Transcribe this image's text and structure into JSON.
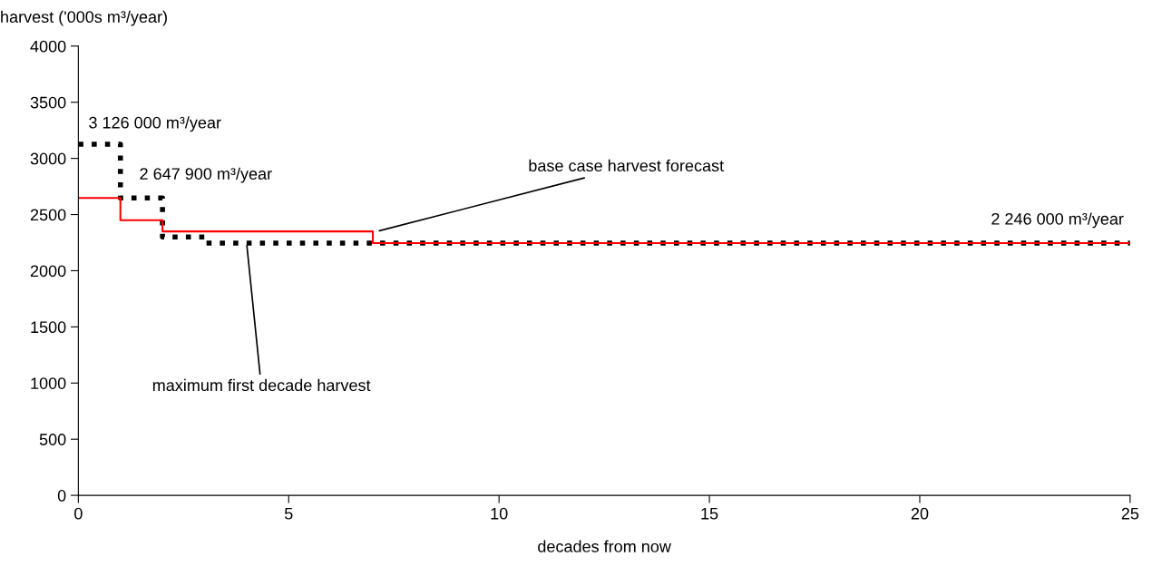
{
  "chart_data": {
    "type": "step",
    "xlabel": "decades from now",
    "ylabel": "harvest ('000s m³/year)",
    "xlim": [
      0,
      25
    ],
    "xticks": [
      0,
      5,
      10,
      15,
      20,
      25
    ],
    "ylim": [
      0,
      4000
    ],
    "yticks": [
      0,
      500,
      1000,
      1500,
      2000,
      2500,
      3000,
      3500,
      4000
    ],
    "grid": false,
    "legend": false,
    "series": [
      {
        "color": "#000000",
        "line_style": "dotted",
        "x": [
          0,
          1,
          2,
          3,
          25
        ],
        "values": [
          3126,
          2647.9,
          2300,
          2246,
          2246
        ]
      },
      {
        "color": "#ff0000",
        "line_style": "solid",
        "x": [
          0,
          1,
          2,
          7,
          25
        ],
        "values": [
          2647.9,
          2450,
          2350,
          2246,
          2246
        ]
      }
    ],
    "annotations": [
      {
        "text": "3 126 000 m³/year",
        "x": 0,
        "y": 3126
      },
      {
        "text": "2 647 900 m³/year",
        "x": 1,
        "y": 2647.9
      },
      {
        "text": "base case harvest forecast",
        "x": 7.1,
        "y": 2350
      },
      {
        "text": "maximum first decade harvest",
        "x": 4,
        "y": 2246
      },
      {
        "text": "2 246 000 m³/year",
        "x": 25,
        "y": 2246
      }
    ]
  }
}
